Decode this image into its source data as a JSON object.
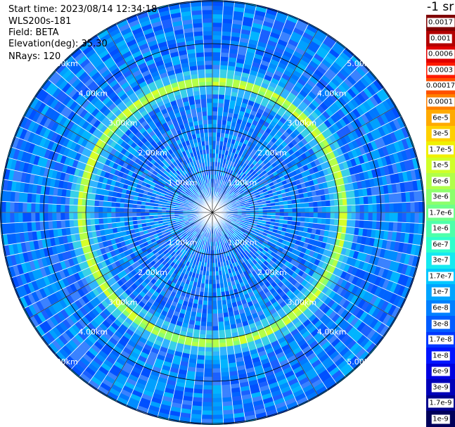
{
  "header": {
    "start_time": "Start time: 2023/08/14 12:34:18",
    "instrument": "WLS200s-181",
    "field": "Field: BETA",
    "elevation": "Elevation(deg): 35.30",
    "nrays": "NRays: 120"
  },
  "colorbar": {
    "unit_label": "-1 sr",
    "ticks": [
      "0.0017",
      "0.001",
      "0.0006",
      "0.0003",
      "0.00017",
      "0.0001",
      "6e-5",
      "3e-5",
      "1.7e-5",
      "1e-5",
      "6e-6",
      "3e-6",
      "1.7e-6",
      "1e-6",
      "6e-7",
      "3e-7",
      "1.7e-7",
      "1e-7",
      "6e-8",
      "3e-8",
      "1.7e-8",
      "1e-8",
      "6e-9",
      "3e-9",
      "1.7e-9",
      "1e-9"
    ],
    "colors": [
      "#800000",
      "#b20000",
      "#e00000",
      "#ff1a00",
      "#ff5000",
      "#ff8000",
      "#ffaa00",
      "#ffd000",
      "#f0f000",
      "#d0ff2a",
      "#b0ff4a",
      "#8cff6c",
      "#6eff8a",
      "#4effaa",
      "#2effcc",
      "#14eaf0",
      "#00c8ff",
      "#00a4ff",
      "#0080ff",
      "#005cff",
      "#0038ff",
      "#0014ff",
      "#0000e0",
      "#0000b8",
      "#00008c",
      "#00005a"
    ]
  },
  "chart_data": {
    "type": "heatmap",
    "projection": "polar PPI scan",
    "field": "BETA",
    "elevation_deg": 35.3,
    "n_rays": 120,
    "range_rings_km": [
      1,
      2,
      3,
      4,
      5
    ],
    "ring_labels": [
      "1.00km",
      "2.00km",
      "3.00km",
      "4.00km",
      "5.00km"
    ],
    "colorscale": "log, 1e-9 to 0.0017 sr-1 (jet)",
    "dominant_value": "about 1e-8 to 6e-8 (blue)",
    "enhanced_ring_km": 3.1,
    "enhanced_ring_value": "about 1e-6 to 1.7e-6 (green-yellow)",
    "grid": true
  }
}
